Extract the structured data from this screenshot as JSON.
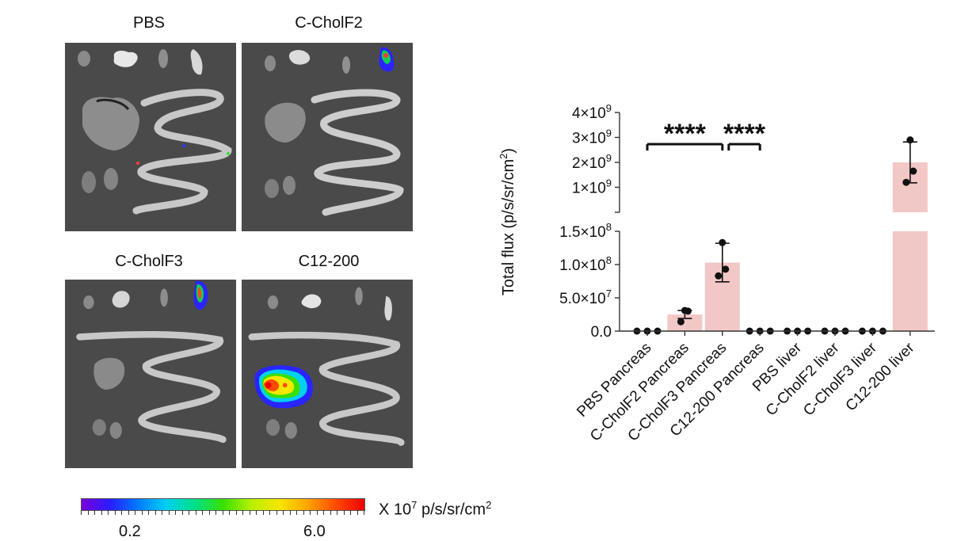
{
  "images": {
    "panels": [
      {
        "label": "PBS"
      },
      {
        "label": "C-CholF2"
      },
      {
        "label": "C-CholF3"
      },
      {
        "label": "C12-200"
      }
    ],
    "colorbar": {
      "min_label": "0.2",
      "max_label": "6.0",
      "unit_prefix": "X 10",
      "unit_exp": "7",
      "unit_suffix": " p/s/sr/cm",
      "unit_suffix_exp": "2",
      "colors": [
        "#7a00d8",
        "#2a1cff",
        "#007bff",
        "#00d0f0",
        "#00e08a",
        "#38e000",
        "#b8f000",
        "#f6e600",
        "#ffa400",
        "#ff4a00",
        "#ee0000"
      ]
    }
  },
  "chart_data": {
    "type": "bar",
    "ylabel": "Total flux (p/s/sr/cm",
    "ylabel_exp": "2",
    "ylabel_close": ")",
    "categories": [
      "PBS Pancreas",
      "C-CholF2 Pancreas",
      "C-CholF3 Pancreas",
      "C12-200 Pancreas",
      "PBS liver",
      "C-CholF2 liver",
      "C-CholF3 liver",
      "C12-200 liver"
    ],
    "values": [
      0,
      25000000,
      103000000,
      0,
      0,
      0,
      0,
      2000000000
    ],
    "error_upper": [
      0,
      31000000,
      132000000,
      0,
      0,
      0,
      0,
      2820000000
    ],
    "error_lower": [
      0,
      19000000,
      74000000,
      0,
      0,
      0,
      0,
      1180000000
    ],
    "points": [
      [
        0,
        0,
        0
      ],
      [
        31000000,
        30000000,
        14000000
      ],
      [
        133000000,
        93000000,
        83000000
      ],
      [
        0,
        0,
        0
      ],
      [
        0,
        0,
        0
      ],
      [
        0,
        0,
        0
      ],
      [
        0,
        0,
        0
      ],
      [
        2900000000,
        1650000000,
        1200000000
      ]
    ],
    "bar_color": "#f2c8c6",
    "axis_segments": [
      {
        "range": [
          0,
          150000000
        ],
        "ticks": [
          0,
          50000000,
          100000000,
          150000000
        ],
        "tick_labels": [
          {
            "m": "0.0",
            "e": ""
          },
          {
            "m": "5.0×10",
            "e": "7"
          },
          {
            "m": "1.0×10",
            "e": "8"
          },
          {
            "m": "1.5×10",
            "e": "8"
          }
        ]
      },
      {
        "range": [
          0,
          4000000000
        ],
        "ticks": [
          1000000000,
          2000000000,
          3000000000,
          4000000000
        ],
        "tick_labels": [
          {
            "m": "1×10",
            "e": "9"
          },
          {
            "m": "2×10",
            "e": "9"
          },
          {
            "m": "3×10",
            "e": "9"
          },
          {
            "m": "4×10",
            "e": "9"
          }
        ]
      }
    ],
    "significance": [
      {
        "from": 0,
        "to": 2,
        "label": "****"
      },
      {
        "from": 2,
        "to": 3,
        "label": "****"
      }
    ]
  }
}
